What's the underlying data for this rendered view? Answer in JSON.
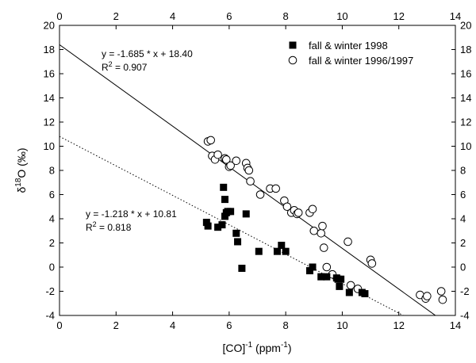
{
  "chart_data": {
    "type": "scatter",
    "xlabel": "[CO]",
    "xlabel_sup": "-1",
    "xlabel_unit": " (ppm",
    "xlabel_unit_sup": "-1",
    "xlabel_close": ")",
    "ylabel_delta": "δ",
    "ylabel_sup": "18",
    "ylabel_rest": "O (‰)",
    "xlim": [
      0,
      14
    ],
    "ylim": [
      -4,
      20
    ],
    "x_ticks": [
      0,
      2,
      4,
      6,
      8,
      10,
      12,
      14
    ],
    "y_ticks": [
      -4,
      -2,
      0,
      2,
      4,
      6,
      8,
      10,
      12,
      14,
      16,
      18,
      20
    ],
    "grid": false,
    "legend_position": "top-right",
    "series": [
      {
        "name": "fall & winter 1998",
        "marker": "filled-square",
        "color": "#000000",
        "x": [
          5.2,
          5.25,
          5.6,
          5.75,
          5.8,
          5.85,
          5.9,
          5.85,
          5.95,
          6.05,
          6.25,
          6.3,
          6.45,
          6.6,
          7.05,
          7.7,
          7.85,
          8.0,
          8.85,
          8.95,
          9.25,
          9.45,
          9.8,
          9.85,
          9.9,
          9.95,
          10.25,
          10.7,
          10.8
        ],
        "y": [
          3.7,
          3.4,
          3.3,
          3.5,
          6.6,
          5.6,
          4.5,
          4.2,
          4.6,
          4.6,
          2.8,
          2.1,
          -0.1,
          4.4,
          1.3,
          1.3,
          1.8,
          1.3,
          -0.3,
          0.0,
          -0.8,
          -0.8,
          -0.9,
          -1.0,
          -1.6,
          -1.0,
          -2.1,
          -2.1,
          -2.2
        ]
      },
      {
        "name": "fall & winter 1996/1997",
        "marker": "open-circle",
        "color": "#000000",
        "x": [
          5.25,
          5.35,
          5.4,
          5.5,
          5.6,
          5.85,
          5.9,
          6.0,
          6.05,
          6.25,
          6.6,
          6.65,
          6.7,
          6.75,
          7.1,
          7.45,
          7.65,
          7.95,
          8.05,
          8.2,
          8.3,
          8.4,
          8.45,
          8.85,
          8.95,
          9.0,
          9.25,
          9.3,
          9.35,
          9.45,
          9.65,
          10.2,
          10.3,
          10.55,
          11.0,
          11.05,
          12.75,
          12.95,
          13.0,
          13.5,
          13.55
        ],
        "y": [
          10.4,
          10.5,
          9.2,
          8.9,
          9.3,
          9.0,
          8.9,
          8.3,
          8.4,
          8.8,
          8.6,
          8.2,
          8.0,
          7.1,
          6.0,
          6.5,
          6.5,
          5.5,
          5.0,
          4.5,
          4.7,
          4.4,
          4.5,
          4.5,
          4.8,
          3.0,
          2.8,
          3.4,
          1.6,
          0.0,
          -0.6,
          2.1,
          -1.5,
          -1.8,
          0.6,
          0.3,
          -2.3,
          -2.6,
          -2.4,
          -2.0,
          -2.7
        ]
      }
    ],
    "fits": [
      {
        "style": "solid",
        "slope": -1.685,
        "intercept": 18.4,
        "x_range": [
          0,
          13.6
        ],
        "equation": "y = -1.685 * x + 18.40",
        "r2_prefix": "R",
        "r2_sup": "2",
        "r2_value": " = 0.907"
      },
      {
        "style": "dotted",
        "slope": -1.218,
        "intercept": 10.81,
        "x_range": [
          0,
          12.2
        ],
        "equation": "y = -1.218 * x + 10.81",
        "r2_prefix": "R",
        "r2_sup": "2",
        "r2_value": " = 0.818"
      }
    ]
  }
}
